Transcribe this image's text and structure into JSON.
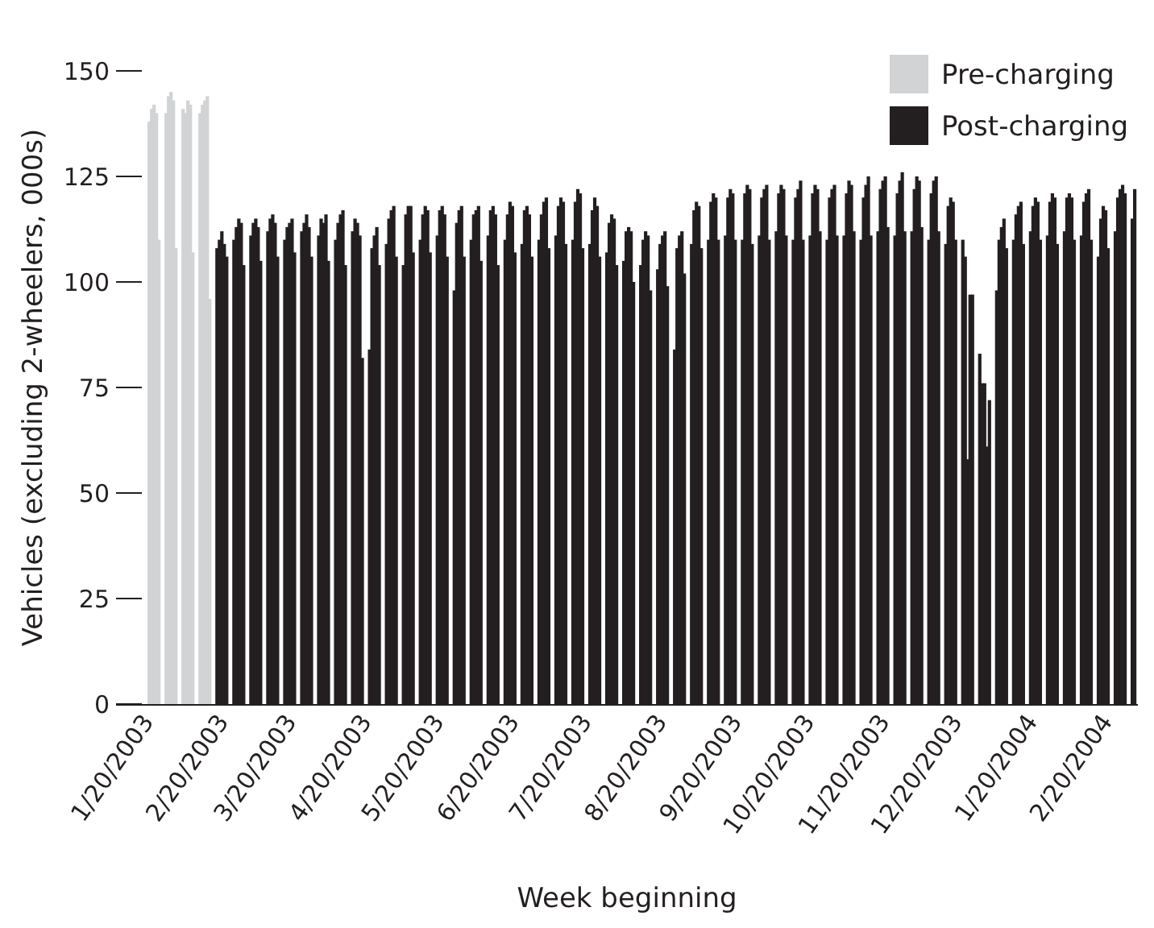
{
  "chart_data": {
    "type": "bar",
    "xlabel": "Week beginning",
    "ylabel": "Vehicles (excluding 2-wheelers,  000s)",
    "xlim": [
      "2003-01-07",
      "2004-03-04"
    ],
    "xticks": [
      {
        "value": "2003-01-20",
        "label": "1/20/2003"
      },
      {
        "value": "2003-02-20",
        "label": "2/20/2003"
      },
      {
        "value": "2003-03-20",
        "label": "3/20/2003"
      },
      {
        "value": "2003-04-20",
        "label": "4/20/2003"
      },
      {
        "value": "2003-05-20",
        "label": "5/20/2003"
      },
      {
        "value": "2003-06-20",
        "label": "6/20/2003"
      },
      {
        "value": "2003-07-20",
        "label": "7/20/2003"
      },
      {
        "value": "2003-08-20",
        "label": "8/20/2003"
      },
      {
        "value": "2003-09-20",
        "label": "9/20/2003"
      },
      {
        "value": "2003-10-20",
        "label": "10/20/2003"
      },
      {
        "value": "2003-11-20",
        "label": "11/20/2003"
      },
      {
        "value": "2003-12-20",
        "label": "12/20/2003"
      },
      {
        "value": "2004-01-20",
        "label": "1/20/2004"
      },
      {
        "value": "2004-02-20",
        "label": "2/20/2004"
      }
    ],
    "ylim": [
      0,
      150
    ],
    "yticks": [
      0,
      25,
      50,
      75,
      100,
      125,
      150
    ],
    "legend": "top right",
    "series": [
      {
        "name": "Pre-charging",
        "color": "#d1d3d4",
        "x": [
          "2003-01-20",
          "2003-01-21",
          "2003-01-22",
          "2003-01-23",
          "2003-01-24",
          "2003-01-27",
          "2003-01-28",
          "2003-01-29",
          "2003-01-30",
          "2003-01-31",
          "2003-02-03",
          "2003-02-04",
          "2003-02-05",
          "2003-02-06",
          "2003-02-07",
          "2003-02-10",
          "2003-02-11",
          "2003-02-12",
          "2003-02-13",
          "2003-02-14"
        ],
        "values": [
          138,
          141,
          142,
          140,
          110,
          140,
          144,
          145,
          143,
          108,
          141,
          140,
          143,
          142,
          107,
          140,
          142,
          143,
          144,
          96
        ]
      },
      {
        "name": "Post-charging",
        "color": "#231f20",
        "x": [
          "2003-02-17",
          "2003-02-18",
          "2003-02-19",
          "2003-02-20",
          "2003-02-21",
          "2003-02-24",
          "2003-02-25",
          "2003-02-26",
          "2003-02-27",
          "2003-02-28",
          "2003-03-03",
          "2003-03-04",
          "2003-03-05",
          "2003-03-06",
          "2003-03-07",
          "2003-03-10",
          "2003-03-11",
          "2003-03-12",
          "2003-03-13",
          "2003-03-14",
          "2003-03-17",
          "2003-03-18",
          "2003-03-19",
          "2003-03-20",
          "2003-03-21",
          "2003-03-24",
          "2003-03-25",
          "2003-03-26",
          "2003-03-27",
          "2003-03-28",
          "2003-03-31",
          "2003-04-01",
          "2003-04-02",
          "2003-04-03",
          "2003-04-04",
          "2003-04-07",
          "2003-04-08",
          "2003-04-09",
          "2003-04-10",
          "2003-04-11",
          "2003-04-14",
          "2003-04-15",
          "2003-04-16",
          "2003-04-17",
          "2003-04-18",
          "2003-04-21",
          "2003-04-22",
          "2003-04-23",
          "2003-04-24",
          "2003-04-25",
          "2003-04-28",
          "2003-04-29",
          "2003-04-30",
          "2003-05-01",
          "2003-05-02",
          "2003-05-05",
          "2003-05-06",
          "2003-05-07",
          "2003-05-08",
          "2003-05-09",
          "2003-05-12",
          "2003-05-13",
          "2003-05-14",
          "2003-05-15",
          "2003-05-16",
          "2003-05-19",
          "2003-05-20",
          "2003-05-21",
          "2003-05-22",
          "2003-05-23",
          "2003-05-26",
          "2003-05-27",
          "2003-05-28",
          "2003-05-29",
          "2003-05-30",
          "2003-06-02",
          "2003-06-03",
          "2003-06-04",
          "2003-06-05",
          "2003-06-06",
          "2003-06-09",
          "2003-06-10",
          "2003-06-11",
          "2003-06-12",
          "2003-06-13",
          "2003-06-16",
          "2003-06-17",
          "2003-06-18",
          "2003-06-19",
          "2003-06-20",
          "2003-06-23",
          "2003-06-24",
          "2003-06-25",
          "2003-06-26",
          "2003-06-27",
          "2003-06-30",
          "2003-07-01",
          "2003-07-02",
          "2003-07-03",
          "2003-07-04",
          "2003-07-07",
          "2003-07-08",
          "2003-07-09",
          "2003-07-10",
          "2003-07-11",
          "2003-07-14",
          "2003-07-15",
          "2003-07-16",
          "2003-07-17",
          "2003-07-18",
          "2003-07-21",
          "2003-07-22",
          "2003-07-23",
          "2003-07-24",
          "2003-07-25",
          "2003-07-28",
          "2003-07-29",
          "2003-07-30",
          "2003-07-31",
          "2003-08-01",
          "2003-08-04",
          "2003-08-05",
          "2003-08-06",
          "2003-08-07",
          "2003-08-08",
          "2003-08-11",
          "2003-08-12",
          "2003-08-13",
          "2003-08-14",
          "2003-08-15",
          "2003-08-18",
          "2003-08-19",
          "2003-08-20",
          "2003-08-21",
          "2003-08-22",
          "2003-08-25",
          "2003-08-26",
          "2003-08-27",
          "2003-08-28",
          "2003-08-29",
          "2003-09-01",
          "2003-09-02",
          "2003-09-03",
          "2003-09-04",
          "2003-09-05",
          "2003-09-08",
          "2003-09-09",
          "2003-09-10",
          "2003-09-11",
          "2003-09-12",
          "2003-09-15",
          "2003-09-16",
          "2003-09-17",
          "2003-09-18",
          "2003-09-19",
          "2003-09-22",
          "2003-09-23",
          "2003-09-24",
          "2003-09-25",
          "2003-09-26",
          "2003-09-29",
          "2003-09-30",
          "2003-10-01",
          "2003-10-02",
          "2003-10-03",
          "2003-10-06",
          "2003-10-07",
          "2003-10-08",
          "2003-10-09",
          "2003-10-10",
          "2003-10-13",
          "2003-10-14",
          "2003-10-15",
          "2003-10-16",
          "2003-10-17",
          "2003-10-20",
          "2003-10-21",
          "2003-10-22",
          "2003-10-23",
          "2003-10-24",
          "2003-10-27",
          "2003-10-28",
          "2003-10-29",
          "2003-10-30",
          "2003-10-31",
          "2003-11-03",
          "2003-11-04",
          "2003-11-05",
          "2003-11-06",
          "2003-11-07",
          "2003-11-10",
          "2003-11-11",
          "2003-11-12",
          "2003-11-13",
          "2003-11-14",
          "2003-11-17",
          "2003-11-18",
          "2003-11-19",
          "2003-11-20",
          "2003-11-21",
          "2003-11-24",
          "2003-11-25",
          "2003-11-26",
          "2003-11-27",
          "2003-11-28",
          "2003-12-01",
          "2003-12-02",
          "2003-12-03",
          "2003-12-04",
          "2003-12-05",
          "2003-12-08",
          "2003-12-09",
          "2003-12-10",
          "2003-12-11",
          "2003-12-12",
          "2003-12-15",
          "2003-12-16",
          "2003-12-17",
          "2003-12-18",
          "2003-12-19",
          "2003-12-22",
          "2003-12-23",
          "2003-12-24",
          "2003-12-25",
          "2003-12-26",
          "2003-12-29",
          "2003-12-30",
          "2003-12-31",
          "2004-01-01",
          "2004-01-02",
          "2004-01-05",
          "2004-01-06",
          "2004-01-07",
          "2004-01-08",
          "2004-01-09",
          "2004-01-12",
          "2004-01-13",
          "2004-01-14",
          "2004-01-15",
          "2004-01-16",
          "2004-01-19",
          "2004-01-20",
          "2004-01-21",
          "2004-01-22",
          "2004-01-23",
          "2004-01-26",
          "2004-01-27",
          "2004-01-28",
          "2004-01-29",
          "2004-01-30",
          "2004-02-02",
          "2004-02-03",
          "2004-02-04",
          "2004-02-05",
          "2004-02-06",
          "2004-02-09",
          "2004-02-10",
          "2004-02-11",
          "2004-02-12",
          "2004-02-13",
          "2004-02-16",
          "2004-02-17",
          "2004-02-18",
          "2004-02-19",
          "2004-02-20",
          "2004-02-23",
          "2004-02-24",
          "2004-02-25",
          "2004-02-26",
          "2004-02-27",
          "2004-03-01",
          "2004-03-02"
        ],
        "values": [
          108,
          110,
          112,
          109,
          106,
          110,
          113,
          115,
          114,
          104,
          111,
          114,
          115,
          113,
          105,
          112,
          115,
          116,
          114,
          106,
          110,
          113,
          114,
          115,
          107,
          112,
          114,
          116,
          113,
          106,
          111,
          115,
          114,
          116,
          105,
          110,
          114,
          116,
          117,
          104,
          112,
          115,
          114,
          111,
          82,
          84,
          108,
          111,
          113,
          104,
          109,
          115,
          117,
          118,
          106,
          104,
          116,
          118,
          118,
          107,
          110,
          116,
          118,
          117,
          107,
          111,
          117,
          118,
          116,
          106,
          98,
          114,
          117,
          118,
          106,
          110,
          116,
          117,
          118,
          105,
          111,
          117,
          118,
          116,
          104,
          110,
          116,
          119,
          118,
          107,
          109,
          117,
          118,
          116,
          106,
          110,
          116,
          119,
          120,
          108,
          111,
          118,
          120,
          119,
          109,
          110,
          119,
          122,
          121,
          108,
          109,
          117,
          120,
          118,
          106,
          107,
          114,
          116,
          115,
          104,
          105,
          112,
          113,
          112,
          100,
          104,
          110,
          112,
          111,
          98,
          103,
          109,
          111,
          112,
          99,
          84,
          108,
          111,
          112,
          102,
          109,
          117,
          119,
          118,
          108,
          110,
          119,
          121,
          120,
          110,
          111,
          120,
          122,
          121,
          110,
          110,
          121,
          123,
          122,
          109,
          111,
          120,
          122,
          123,
          110,
          112,
          121,
          123,
          122,
          111,
          110,
          120,
          122,
          124,
          110,
          111,
          121,
          123,
          122,
          112,
          110,
          120,
          122,
          123,
          111,
          111,
          121,
          124,
          123,
          112,
          110,
          120,
          123,
          125,
          111,
          112,
          122,
          124,
          125,
          113,
          111,
          121,
          124,
          126,
          112,
          112,
          122,
          125,
          124,
          113,
          110,
          121,
          124,
          125,
          112,
          109,
          118,
          120,
          119,
          110,
          110,
          106,
          58,
          97,
          97,
          83,
          76,
          76,
          61,
          72,
          98,
          110,
          113,
          115,
          108,
          110,
          116,
          118,
          119,
          109,
          112,
          118,
          120,
          119,
          110,
          111,
          119,
          121,
          120,
          109,
          112,
          120,
          121,
          120,
          110,
          111,
          119,
          121,
          122,
          110,
          106,
          115,
          118,
          117,
          108,
          112,
          120,
          122,
          123,
          121,
          115,
          122
        ]
      }
    ]
  }
}
